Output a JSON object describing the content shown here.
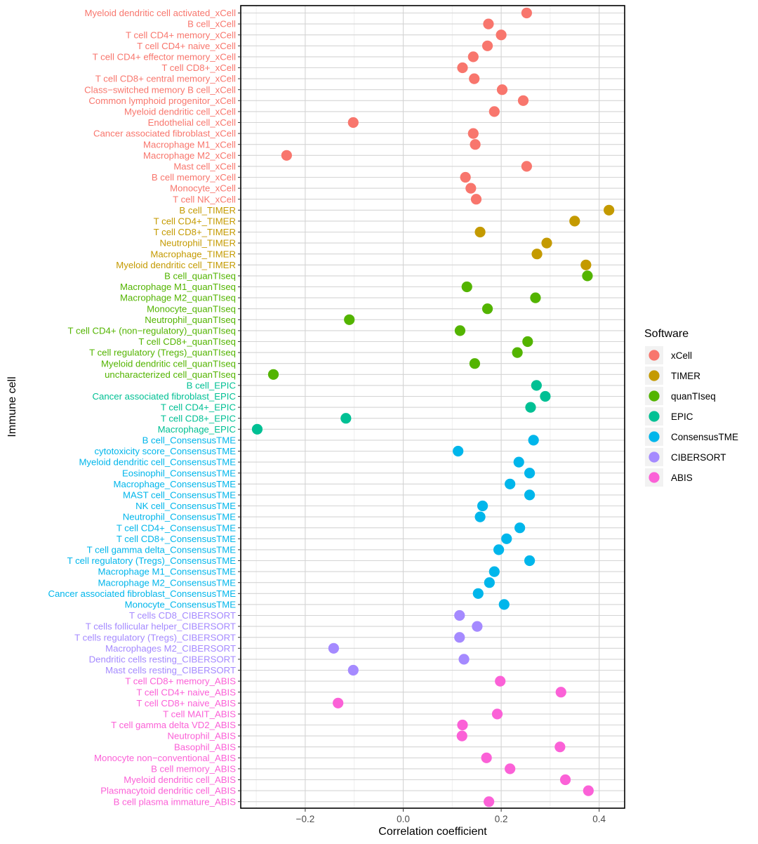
{
  "chart_data": {
    "type": "scatter",
    "title": "",
    "xlabel": "Correlation coefficient",
    "ylabel": "Immune cell",
    "xlim": [
      -0.33,
      0.445
    ],
    "xticks": [
      -0.2,
      0.0,
      0.2,
      0.4
    ],
    "xtick_labels": [
      "−0.2",
      "0.0",
      "0.2",
      "0.4"
    ],
    "grid": true,
    "legend": {
      "title": "Software",
      "position": "right",
      "entries": [
        {
          "name": "xCell",
          "color": "#F8766D"
        },
        {
          "name": "TIMER",
          "color": "#C49A00"
        },
        {
          "name": "quanTIseq",
          "color": "#53B400"
        },
        {
          "name": "EPIC",
          "color": "#00C094"
        },
        {
          "name": "ConsensusTME",
          "color": "#00B6EB"
        },
        {
          "name": "CIBERSORT",
          "color": "#A58AFF"
        },
        {
          "name": "ABIS",
          "color": "#FB61D7"
        }
      ]
    },
    "points": [
      {
        "label": "Myeloid dendritic cell activated_xCell",
        "software": "xCell",
        "value": 0.252
      },
      {
        "label": "B cell_xCell",
        "software": "xCell",
        "value": 0.174
      },
      {
        "label": "T cell CD4+ memory_xCell",
        "software": "xCell",
        "value": 0.2
      },
      {
        "label": "T cell CD4+ naive_xCell",
        "software": "xCell",
        "value": 0.172
      },
      {
        "label": "T cell CD4+ effector memory_xCell",
        "software": "xCell",
        "value": 0.143
      },
      {
        "label": "T cell CD8+_xCell",
        "software": "xCell",
        "value": 0.121
      },
      {
        "label": "T cell CD8+ central memory_xCell",
        "software": "xCell",
        "value": 0.145
      },
      {
        "label": "Class−switched memory B cell_xCell",
        "software": "xCell",
        "value": 0.202
      },
      {
        "label": "Common lymphoid progenitor_xCell",
        "software": "xCell",
        "value": 0.245
      },
      {
        "label": "Myeloid dendritic cell_xCell",
        "software": "xCell",
        "value": 0.186
      },
      {
        "label": "Endothelial cell_xCell",
        "software": "xCell",
        "value": -0.102
      },
      {
        "label": "Cancer associated fibroblast_xCell",
        "software": "xCell",
        "value": 0.143
      },
      {
        "label": "Macrophage M1_xCell",
        "software": "xCell",
        "value": 0.147
      },
      {
        "label": "Macrophage M2_xCell",
        "software": "xCell",
        "value": -0.238
      },
      {
        "label": "Mast cell_xCell",
        "software": "xCell",
        "value": 0.252
      },
      {
        "label": "B cell memory_xCell",
        "software": "xCell",
        "value": 0.127
      },
      {
        "label": "Monocyte_xCell",
        "software": "xCell",
        "value": 0.138
      },
      {
        "label": "T cell NK_xCell",
        "software": "xCell",
        "value": 0.149
      },
      {
        "label": "B cell_TIMER",
        "software": "TIMER",
        "value": 0.42
      },
      {
        "label": "T cell CD4+_TIMER",
        "software": "TIMER",
        "value": 0.35
      },
      {
        "label": "T cell CD8+_TIMER",
        "software": "TIMER",
        "value": 0.157
      },
      {
        "label": "Neutrophil_TIMER",
        "software": "TIMER",
        "value": 0.293
      },
      {
        "label": "Macrophage_TIMER",
        "software": "TIMER",
        "value": 0.273
      },
      {
        "label": "Myeloid dendritic cell_TIMER",
        "software": "TIMER",
        "value": 0.373
      },
      {
        "label": "B cell_quanTIseq",
        "software": "quanTIseq",
        "value": 0.376
      },
      {
        "label": "Macrophage M1_quanTIseq",
        "software": "quanTIseq",
        "value": 0.13
      },
      {
        "label": "Macrophage M2_quanTIseq",
        "software": "quanTIseq",
        "value": 0.27
      },
      {
        "label": "Monocyte_quanTIseq",
        "software": "quanTIseq",
        "value": 0.172
      },
      {
        "label": "Neutrophil_quanTIseq",
        "software": "quanTIseq",
        "value": -0.11
      },
      {
        "label": "T cell CD4+ (non−regulatory)_quanTIseq",
        "software": "quanTIseq",
        "value": 0.116
      },
      {
        "label": "T cell CD8+_quanTIseq",
        "software": "quanTIseq",
        "value": 0.254
      },
      {
        "label": "T cell regulatory (Tregs)_quanTIseq",
        "software": "quanTIseq",
        "value": 0.233
      },
      {
        "label": "Myeloid dendritic cell_quanTIseq",
        "software": "quanTIseq",
        "value": 0.146
      },
      {
        "label": "uncharacterized cell_quanTIseq",
        "software": "quanTIseq",
        "value": -0.265
      },
      {
        "label": "B cell_EPIC",
        "software": "EPIC",
        "value": 0.272
      },
      {
        "label": "Cancer associated fibroblast_EPIC",
        "software": "EPIC",
        "value": 0.29
      },
      {
        "label": "T cell CD4+_EPIC",
        "software": "EPIC",
        "value": 0.26
      },
      {
        "label": "T cell CD8+_EPIC",
        "software": "EPIC",
        "value": -0.117
      },
      {
        "label": "Macrophage_EPIC",
        "software": "EPIC",
        "value": -0.298
      },
      {
        "label": "B cell_ConsensusTME",
        "software": "ConsensusTME",
        "value": 0.266
      },
      {
        "label": "cytotoxicity score_ConsensusTME",
        "software": "ConsensusTME",
        "value": 0.112
      },
      {
        "label": "Myeloid dendritic cell_ConsensusTME",
        "software": "ConsensusTME",
        "value": 0.236
      },
      {
        "label": "Eosinophil_ConsensusTME",
        "software": "ConsensusTME",
        "value": 0.258
      },
      {
        "label": "Macrophage_ConsensusTME",
        "software": "ConsensusTME",
        "value": 0.218
      },
      {
        "label": "MAST cell_ConsensusTME",
        "software": "ConsensusTME",
        "value": 0.258
      },
      {
        "label": "NK cell_ConsensusTME",
        "software": "ConsensusTME",
        "value": 0.162
      },
      {
        "label": "Neutrophil_ConsensusTME",
        "software": "ConsensusTME",
        "value": 0.157
      },
      {
        "label": "T cell CD4+_ConsensusTME",
        "software": "ConsensusTME",
        "value": 0.238
      },
      {
        "label": "T cell CD8+_ConsensusTME",
        "software": "ConsensusTME",
        "value": 0.211
      },
      {
        "label": "T cell gamma delta_ConsensusTME",
        "software": "ConsensusTME",
        "value": 0.195
      },
      {
        "label": "T cell regulatory (Tregs)_ConsensusTME",
        "software": "ConsensusTME",
        "value": 0.258
      },
      {
        "label": "Macrophage M1_ConsensusTME",
        "software": "ConsensusTME",
        "value": 0.186
      },
      {
        "label": "Macrophage M2_ConsensusTME",
        "software": "ConsensusTME",
        "value": 0.176
      },
      {
        "label": "Cancer associated fibroblast_ConsensusTME",
        "software": "ConsensusTME",
        "value": 0.153
      },
      {
        "label": "Monocyte_ConsensusTME",
        "software": "ConsensusTME",
        "value": 0.206
      },
      {
        "label": "T cells CD8_CIBERSORT",
        "software": "CIBERSORT",
        "value": 0.115
      },
      {
        "label": "T cells follicular helper_CIBERSORT",
        "software": "CIBERSORT",
        "value": 0.151
      },
      {
        "label": "T cells regulatory (Tregs)_CIBERSORT",
        "software": "CIBERSORT",
        "value": 0.115
      },
      {
        "label": "Macrophages M2_CIBERSORT",
        "software": "CIBERSORT",
        "value": -0.142
      },
      {
        "label": "Dendritic cells resting_CIBERSORT",
        "software": "CIBERSORT",
        "value": 0.124
      },
      {
        "label": "Mast cells resting_CIBERSORT",
        "software": "CIBERSORT",
        "value": -0.102
      },
      {
        "label": "T cell CD8+ memory_ABIS",
        "software": "ABIS",
        "value": 0.198
      },
      {
        "label": "T cell CD4+ naive_ABIS",
        "software": "ABIS",
        "value": 0.322
      },
      {
        "label": "T cell CD8+ naive_ABIS",
        "software": "ABIS",
        "value": -0.133
      },
      {
        "label": "T cell MAIT_ABIS",
        "software": "ABIS",
        "value": 0.192
      },
      {
        "label": "T cell gamma delta VD2_ABIS",
        "software": "ABIS",
        "value": 0.121
      },
      {
        "label": "Neutrophil_ABIS",
        "software": "ABIS",
        "value": 0.12
      },
      {
        "label": "Basophil_ABIS",
        "software": "ABIS",
        "value": 0.32
      },
      {
        "label": "Monocyte non−conventional_ABIS",
        "software": "ABIS",
        "value": 0.17
      },
      {
        "label": "B cell memory_ABIS",
        "software": "ABIS",
        "value": 0.218
      },
      {
        "label": "Myeloid dendritic cell_ABIS",
        "software": "ABIS",
        "value": 0.331
      },
      {
        "label": "Plasmacytoid dendritic cell_ABIS",
        "software": "ABIS",
        "value": 0.378
      },
      {
        "label": "B cell plasma immature_ABIS",
        "software": "ABIS",
        "value": 0.175
      }
    ]
  }
}
